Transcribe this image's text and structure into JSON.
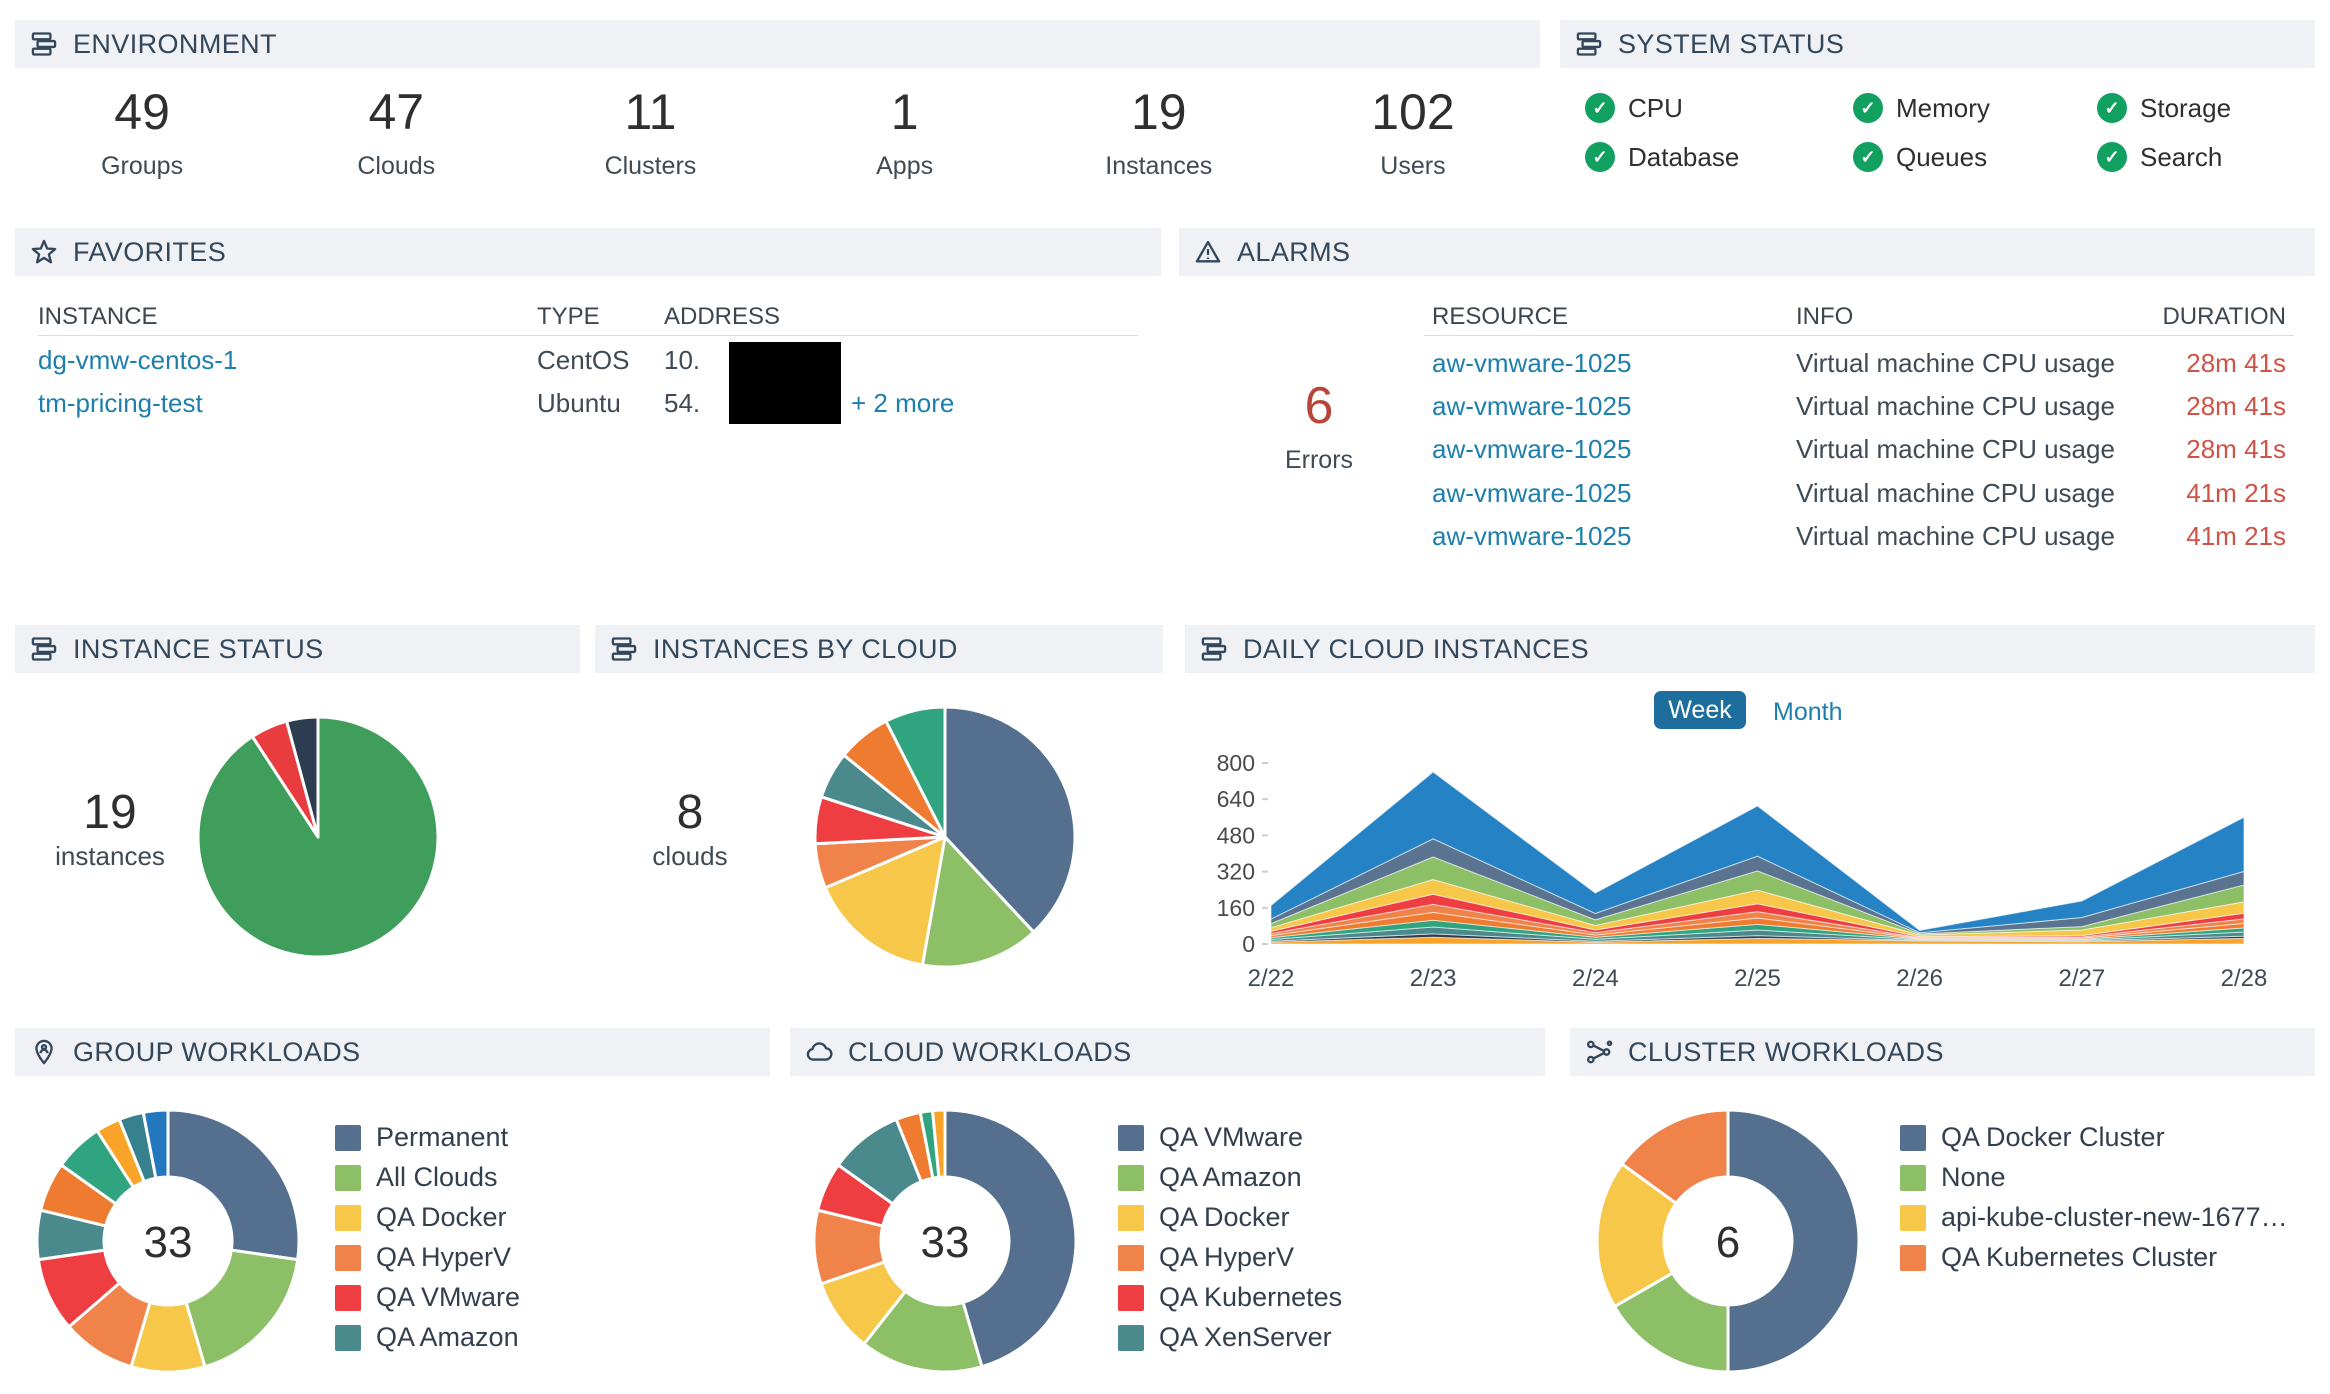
{
  "environment": {
    "title": "ENVIRONMENT",
    "icon": "server-stack-icon",
    "stats": [
      {
        "value": "49",
        "label": "Groups"
      },
      {
        "value": "47",
        "label": "Clouds"
      },
      {
        "value": "11",
        "label": "Clusters"
      },
      {
        "value": "1",
        "label": "Apps"
      },
      {
        "value": "19",
        "label": "Instances"
      },
      {
        "value": "102",
        "label": "Users"
      }
    ]
  },
  "system_status": {
    "title": "SYSTEM STATUS",
    "icon": "server-stack-icon",
    "status_ok_color": "#11a05f",
    "check_glyph": "✓",
    "items": [
      {
        "label": "CPU",
        "status": "ok"
      },
      {
        "label": "Memory",
        "status": "ok"
      },
      {
        "label": "Storage",
        "status": "ok"
      },
      {
        "label": "Database",
        "status": "ok"
      },
      {
        "label": "Queues",
        "status": "ok"
      },
      {
        "label": "Search",
        "status": "ok"
      }
    ]
  },
  "favorites": {
    "title": "FAVORITES",
    "icon": "star-icon",
    "columns": [
      "INSTANCE",
      "TYPE",
      "ADDRESS"
    ],
    "rows": [
      {
        "instance": "dg-vmw-centos-1",
        "type": "CentOS",
        "address_visible": "10.",
        "address_redacted": true,
        "more_link": ""
      },
      {
        "instance": "tm-pricing-test",
        "type": "Ubuntu",
        "address_visible": "54.",
        "address_redacted": true,
        "more_link": "+ 2 more"
      }
    ]
  },
  "alarms": {
    "title": "ALARMS",
    "icon": "warning-triangle-icon",
    "error_count": "6",
    "error_label": "Errors",
    "columns": [
      "RESOURCE",
      "INFO",
      "DURATION"
    ],
    "rows": [
      {
        "resource": "aw-vmware-1025",
        "info": "Virtual machine CPU usage",
        "duration": "28m 41s"
      },
      {
        "resource": "aw-vmware-1025",
        "info": "Virtual machine CPU usage",
        "duration": "28m 41s"
      },
      {
        "resource": "aw-vmware-1025",
        "info": "Virtual machine CPU usage",
        "duration": "28m 41s"
      },
      {
        "resource": "aw-vmware-1025",
        "info": "Virtual machine CPU usage",
        "duration": "41m 21s"
      },
      {
        "resource": "aw-vmware-1025",
        "info": "Virtual machine CPU usage",
        "duration": "41m 21s"
      }
    ]
  },
  "instance_status": {
    "title": "INSTANCE STATUS",
    "icon": "server-stack-icon",
    "count": "19",
    "count_label": "instances"
  },
  "instances_by_cloud": {
    "title": "INSTANCES BY CLOUD",
    "icon": "server-stack-icon",
    "count": "8",
    "count_label": "clouds"
  },
  "daily_cloud_instances": {
    "title": "DAILY CLOUD INSTANCES",
    "icon": "server-stack-icon",
    "week_label": "Week",
    "month_label": "Month",
    "active_range": "Week"
  },
  "group_workloads": {
    "title": "GROUP WORKLOADS",
    "icon": "group-pin-icon",
    "legend": [
      {
        "label": "Permanent",
        "color": "#54708e"
      },
      {
        "label": "All Clouds",
        "color": "#8dbf67"
      },
      {
        "label": "QA Docker",
        "color": "#f7c74a"
      },
      {
        "label": "QA HyperV",
        "color": "#f0834a"
      },
      {
        "label": "QA VMware",
        "color": "#ee3e42"
      },
      {
        "label": "QA Amazon",
        "color": "#4a8a8d"
      }
    ]
  },
  "cloud_workloads": {
    "title": "CLOUD WORKLOADS",
    "icon": "cloud-icon",
    "legend": [
      {
        "label": "QA VMware",
        "color": "#54708e"
      },
      {
        "label": "QA Amazon",
        "color": "#8dbf67"
      },
      {
        "label": "QA Docker",
        "color": "#f7c74a"
      },
      {
        "label": "QA HyperV",
        "color": "#f0834a"
      },
      {
        "label": "QA Kubernetes",
        "color": "#ee3e42"
      },
      {
        "label": "QA XenServer",
        "color": "#4a8a8d"
      }
    ]
  },
  "cluster_workloads": {
    "title": "CLUSTER WORKLOADS",
    "icon": "cluster-nodes-icon",
    "legend": [
      {
        "label": "QA Docker Cluster",
        "color": "#54708e"
      },
      {
        "label": "None",
        "color": "#8dbf67"
      },
      {
        "label": "api-kube-cluster-new-1677…",
        "color": "#f7c74a"
      },
      {
        "label": "QA Kubernetes Cluster",
        "color": "#f0834a"
      }
    ]
  },
  "chart_data": [
    {
      "id": "instance-status-pie",
      "type": "pie",
      "total": 19,
      "slices": [
        {
          "value": 17.25,
          "color": "#3f9e5b"
        },
        {
          "value": 0.95,
          "color": "#e93c3e"
        },
        {
          "value": 0.8,
          "color": "#2b3d4f"
        }
      ]
    },
    {
      "id": "instances-by-cloud-pie",
      "type": "pie",
      "total": 8,
      "slices": [
        {
          "value": 137,
          "color": "#54708e"
        },
        {
          "value": 53,
          "color": "#8dbf67"
        },
        {
          "value": 57,
          "color": "#f7c74a"
        },
        {
          "value": 20,
          "color": "#f0834a"
        },
        {
          "value": 21,
          "color": "#ee3e42"
        },
        {
          "value": 21,
          "color": "#4a8a8d"
        },
        {
          "value": 24,
          "color": "#ee7b30"
        },
        {
          "value": 27,
          "color": "#2fa47e"
        }
      ]
    },
    {
      "id": "daily-cloud-instances-area",
      "type": "area",
      "x_labels": [
        "2/22",
        "2/23",
        "2/24",
        "2/25",
        "2/26",
        "2/27",
        "2/28"
      ],
      "y_ticks": [
        0,
        160,
        320,
        480,
        640,
        800
      ],
      "y_max": 800,
      "grid": false,
      "legend_position": "none",
      "series": [
        {
          "color": "#f9a328",
          "values": [
            8,
            30,
            8,
            25,
            14,
            10,
            25
          ]
        },
        {
          "color": "#2b3d4f",
          "values": [
            4,
            15,
            4,
            12,
            2,
            3,
            10
          ]
        },
        {
          "color": "#4a8a8d",
          "values": [
            8,
            30,
            9,
            25,
            3,
            4,
            18
          ]
        },
        {
          "color": "#2fa47e",
          "values": [
            8,
            30,
            9,
            25,
            3,
            4,
            18
          ]
        },
        {
          "color": "#ee7b30",
          "values": [
            9,
            35,
            10,
            28,
            3,
            5,
            20
          ]
        },
        {
          "color": "#f0834a",
          "values": [
            9,
            35,
            10,
            28,
            3,
            5,
            20
          ]
        },
        {
          "color": "#ee3e42",
          "values": [
            10,
            45,
            12,
            35,
            4,
            6,
            25
          ]
        },
        {
          "color": "#f7c74a",
          "values": [
            16,
            65,
            20,
            60,
            8,
            25,
            50
          ]
        },
        {
          "color": "#8dbf67",
          "values": [
            18,
            100,
            25,
            85,
            5,
            15,
            75
          ]
        },
        {
          "color": "#5a7390",
          "values": [
            20,
            80,
            28,
            65,
            5,
            40,
            60
          ]
        },
        {
          "color": "#2583c5",
          "values": [
            60,
            295,
            90,
            222,
            10,
            73,
            239
          ]
        }
      ]
    },
    {
      "id": "group-workloads-donut",
      "type": "donut",
      "center_label": "33",
      "slices": [
        {
          "value": 9,
          "color": "#54708e"
        },
        {
          "value": 6,
          "color": "#8dbf67"
        },
        {
          "value": 3,
          "color": "#f7c74a"
        },
        {
          "value": 3,
          "color": "#f0834a"
        },
        {
          "value": 3,
          "color": "#ee3e42"
        },
        {
          "value": 2,
          "color": "#4a8a8d"
        },
        {
          "value": 2,
          "color": "#ee7b30"
        },
        {
          "value": 2,
          "color": "#2fa47e"
        },
        {
          "value": 1,
          "color": "#f9a328"
        },
        {
          "value": 1,
          "color": "#37818f"
        },
        {
          "value": 1,
          "color": "#2377bd"
        }
      ]
    },
    {
      "id": "cloud-workloads-donut",
      "type": "donut",
      "center_label": "33",
      "slices": [
        {
          "value": 15,
          "color": "#54708e"
        },
        {
          "value": 5,
          "color": "#8dbf67"
        },
        {
          "value": 3,
          "color": "#f7c74a"
        },
        {
          "value": 3,
          "color": "#f0834a"
        },
        {
          "value": 2,
          "color": "#ee3e42"
        },
        {
          "value": 3,
          "color": "#4a8a8d"
        },
        {
          "value": 1,
          "color": "#ee7b30"
        },
        {
          "value": 0.5,
          "color": "#2fa47e"
        },
        {
          "value": 0.5,
          "color": "#f9a328"
        }
      ]
    },
    {
      "id": "cluster-workloads-donut",
      "type": "donut",
      "center_label": "6",
      "slices": [
        {
          "value": 3,
          "color": "#54708e"
        },
        {
          "value": 1,
          "color": "#8dbf67"
        },
        {
          "value": 1.1,
          "color": "#f7c74a"
        },
        {
          "value": 0.9,
          "color": "#f0834a"
        }
      ]
    }
  ]
}
